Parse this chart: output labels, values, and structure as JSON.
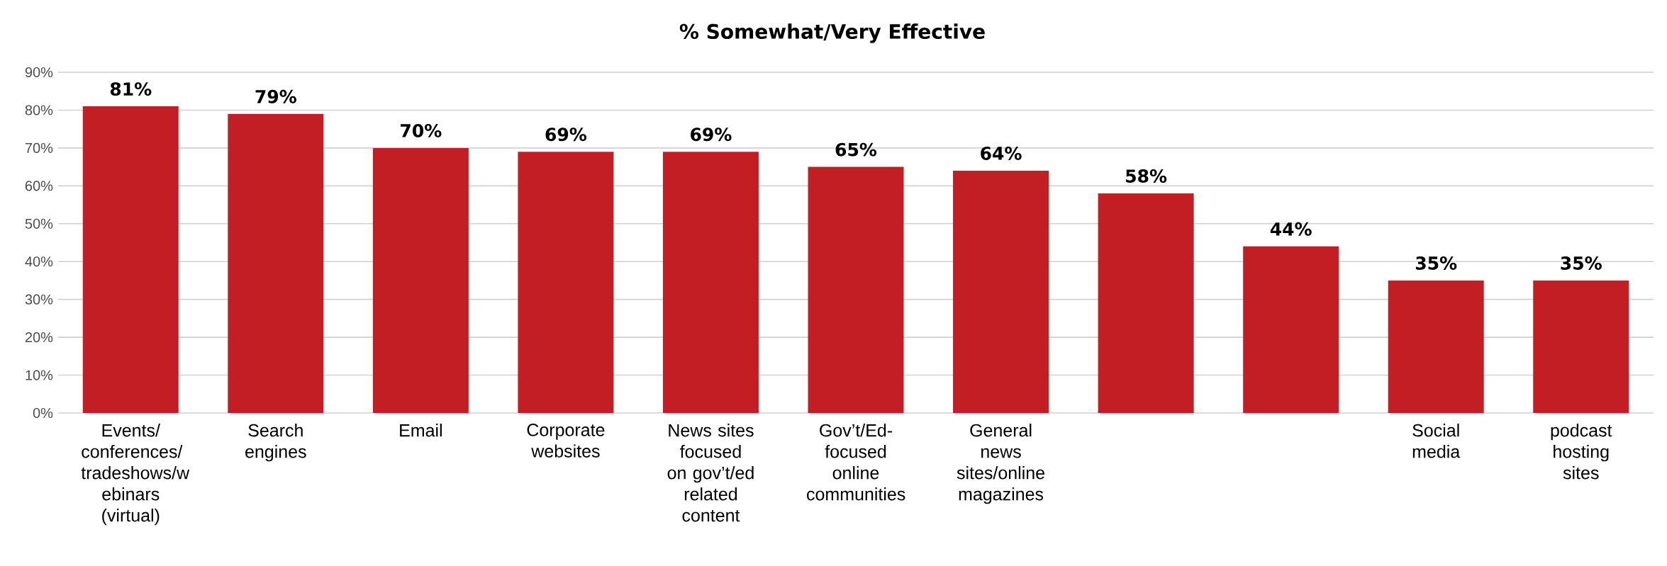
{
  "chart_data": {
    "type": "bar",
    "title": "% Somewhat/Very Effective",
    "categories": [
      "Events/ conferences/ tradeshows/w ebinars (virtual)",
      "Search engines",
      "Email",
      "Corporate websites",
      "News sites focused on gov’t/ed related content",
      "Gov’t/Ed-focused online communities",
      "General news sites/online magazines",
      null,
      null,
      "Social media",
      "podcast hosting sites"
    ],
    "values": [
      81,
      79,
      70,
      69,
      69,
      65,
      64,
      58,
      44,
      35,
      35
    ],
    "value_labels": [
      "81%",
      "79%",
      "70%",
      "69%",
      "69%",
      "65%",
      "64%",
      "58%",
      "44%",
      "35%",
      "35%"
    ],
    "color": "#c41e25",
    "ylim": [
      0,
      90
    ],
    "yticks": [
      {
        "value": 0,
        "label": "0%"
      },
      {
        "value": 10,
        "label": "10%"
      },
      {
        "value": 20,
        "label": "20%"
      },
      {
        "value": 30,
        "label": "30%"
      },
      {
        "value": 40,
        "label": "40%"
      },
      {
        "value": 50,
        "label": "50%"
      },
      {
        "value": 60,
        "label": "60%"
      },
      {
        "value": 70,
        "label": "70%"
      },
      {
        "value": 80,
        "label": "80%"
      },
      {
        "value": 90,
        "label": "90%"
      }
    ],
    "grid": "y"
  }
}
